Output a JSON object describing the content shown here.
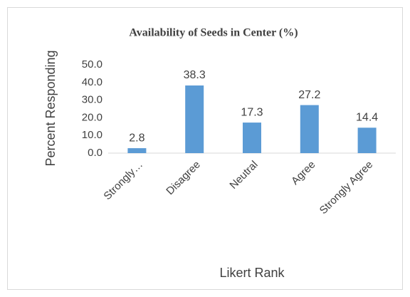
{
  "chart_data": {
    "type": "bar",
    "title": "Availability of Seeds in Center (%)",
    "categories": [
      "Strongly…",
      "Disagree",
      "Neutral",
      "Agree",
      "Strongly Agree"
    ],
    "values": [
      2.8,
      38.3,
      17.3,
      27.2,
      14.4
    ],
    "color": "#5b9bd5",
    "ylim": [
      0,
      50
    ],
    "yticks": [
      {
        "value": 0,
        "label": "0.0"
      },
      {
        "value": 10,
        "label": "10.0"
      },
      {
        "value": 20,
        "label": "20.0"
      },
      {
        "value": 30,
        "label": "30.0"
      },
      {
        "value": 40,
        "label": "40.0"
      },
      {
        "value": 50,
        "label": "50.0"
      }
    ],
    "ylabel": "Percent Responding",
    "xlabel": "Likert Rank",
    "grid": false
  }
}
